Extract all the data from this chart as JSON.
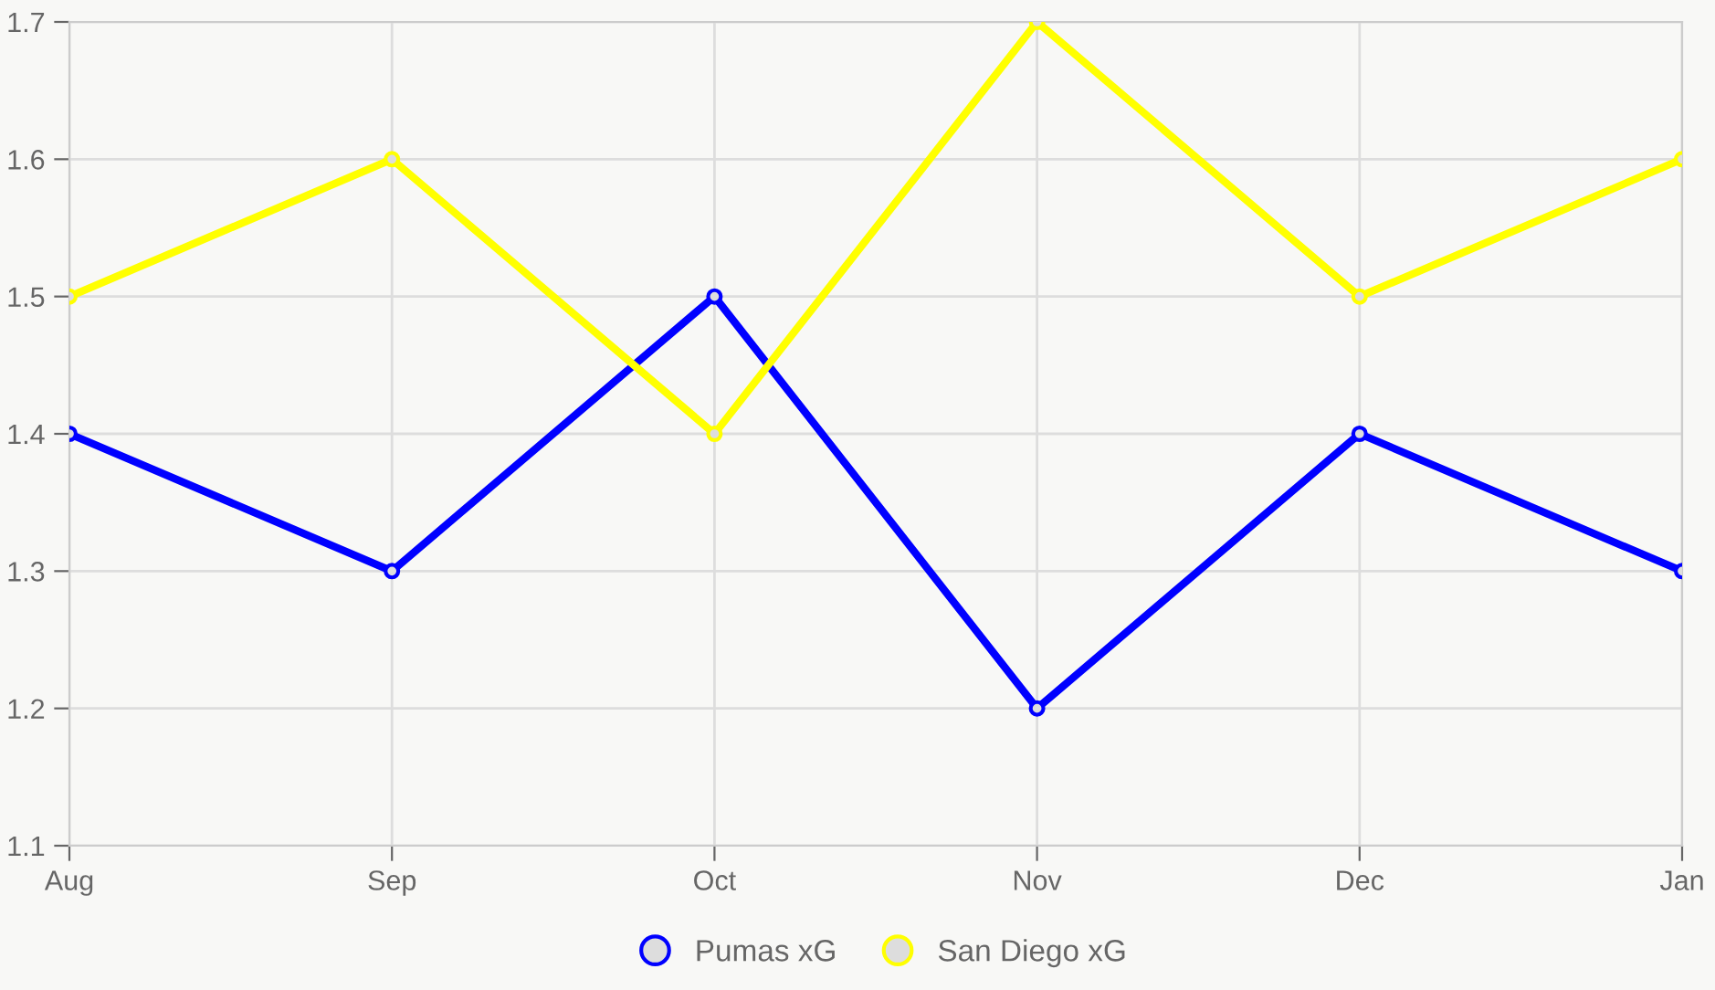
{
  "chart_data": {
    "type": "line",
    "categories": [
      "Aug",
      "Sep",
      "Oct",
      "Nov",
      "Dec",
      "Jan"
    ],
    "series": [
      {
        "name": "Pumas xG",
        "color": "#0000ff",
        "values": [
          1.4,
          1.3,
          1.5,
          1.2,
          1.4,
          1.3
        ]
      },
      {
        "name": "San Diego xG",
        "color": "#ffff00",
        "values": [
          1.5,
          1.6,
          1.4,
          1.7,
          1.5,
          1.6
        ]
      }
    ],
    "ylim": [
      1.1,
      1.7
    ],
    "yticks": [
      {
        "value": 1.1,
        "label": "1.1"
      },
      {
        "value": 1.2,
        "label": "1.2"
      },
      {
        "value": 1.3,
        "label": "1.3"
      },
      {
        "value": 1.4,
        "label": "1.4"
      },
      {
        "value": 1.5,
        "label": "1.5"
      },
      {
        "value": 1.6,
        "label": "1.6"
      },
      {
        "value": 1.7,
        "label": "1.7"
      }
    ],
    "grid": true,
    "legend": "bottom",
    "marker": "circle",
    "line_style": "solid"
  }
}
